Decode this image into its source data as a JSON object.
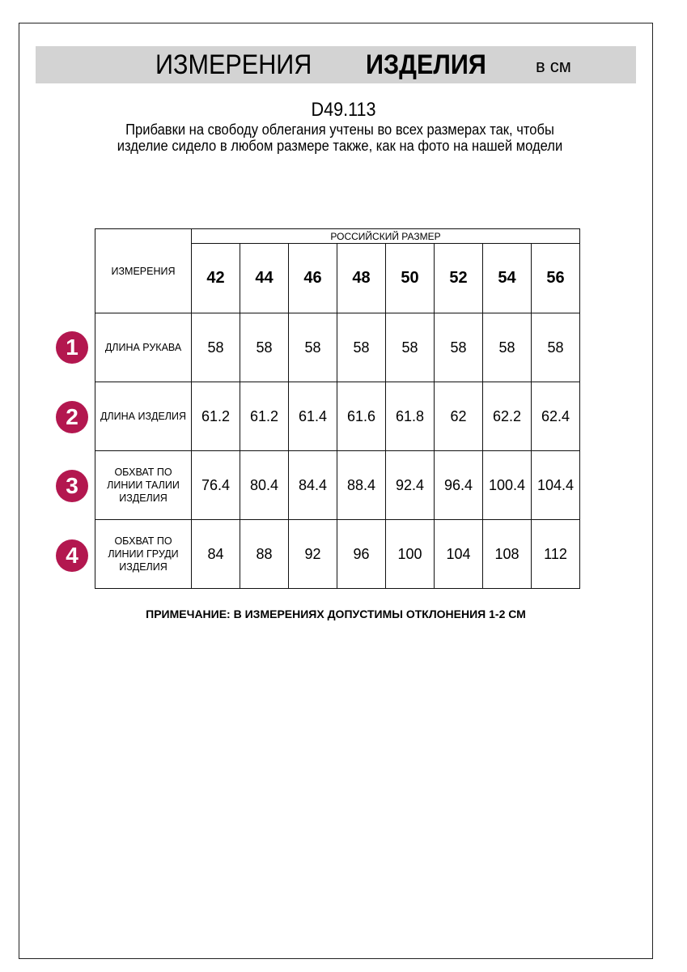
{
  "header": {
    "title_regular": "ИЗМЕРЕНИЯ",
    "title_bold": "ИЗДЕЛИЯ",
    "units": "в см",
    "bar_color": "#d3d3d3"
  },
  "product_code": "D49.113",
  "description": "Прибавки на свободу облегания учтены во всех размерах так, чтобы изделие сидело в любом размере также, как на фото на нашей модели",
  "table": {
    "corner_label": "ИЗМЕРЕНИЯ",
    "group_header": "РОССИЙСКИЙ РАЗМЕР",
    "sizes": [
      "42",
      "44",
      "46",
      "48",
      "50",
      "52",
      "54",
      "56"
    ],
    "rows": [
      {
        "num": "1",
        "label": "ДЛИНА РУКАВА",
        "values": [
          "58",
          "58",
          "58",
          "58",
          "58",
          "58",
          "58",
          "58"
        ]
      },
      {
        "num": "2",
        "label": "ДЛИНА ИЗДЕЛИЯ",
        "values": [
          "61.2",
          "61.2",
          "61.4",
          "61.6",
          "61.8",
          "62",
          "62.2",
          "62.4"
        ]
      },
      {
        "num": "3",
        "label": "ОБХВАТ ПО ЛИНИИ ТАЛИИ ИЗДЕЛИЯ",
        "values": [
          "76.4",
          "80.4",
          "84.4",
          "88.4",
          "92.4",
          "96.4",
          "100.4",
          "104.4"
        ]
      },
      {
        "num": "4",
        "label": "ОБХВАТ ПО ЛИНИИ ГРУДИ ИЗДЕЛИЯ",
        "values": [
          "84",
          "88",
          "92",
          "96",
          "100",
          "104",
          "108",
          "112"
        ]
      }
    ],
    "badge_color": "#b3174f"
  },
  "note": "ПРИМЕЧАНИЕ: В ИЗМЕРЕНИЯХ ДОПУСТИМЫ ОТКЛОНЕНИЯ 1-2 СМ"
}
